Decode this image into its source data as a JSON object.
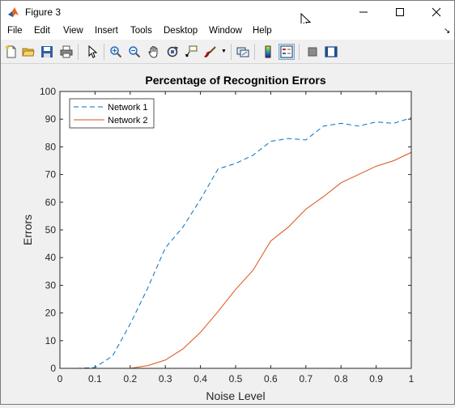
{
  "window": {
    "title": "Figure 3",
    "icon": "matlab-logo-icon",
    "controls": [
      "minimize-icon",
      "maximize-icon",
      "close-icon"
    ]
  },
  "menu": {
    "items": [
      "File",
      "Edit",
      "View",
      "Insert",
      "Tools",
      "Desktop",
      "Window",
      "Help"
    ],
    "overflow_icon": "dock-arrow-icon"
  },
  "toolbar": {
    "buttons": [
      "new-figure-icon",
      "open-file-icon",
      "save-icon",
      "print-icon",
      "edit-plot-pointer-icon",
      "zoom-in-icon",
      "zoom-out-icon",
      "pan-hand-icon",
      "rotate-3d-icon",
      "data-cursor-icon",
      "brush-icon",
      "link-plot-icon",
      "colorbar-icon",
      "legend-icon",
      "hide-plot-tools-icon",
      "show-plot-tools-icon"
    ],
    "selected": "legend-icon"
  },
  "colors": {
    "network1": "#0072BD",
    "network2": "#D95319",
    "window_bg": "#f0f0f0",
    "axes_bg": "#ffffff"
  },
  "chart_data": {
    "type": "line",
    "title": "Percentage of Recognition Errors",
    "xlabel": "Noise Level",
    "ylabel": "Errors",
    "xlim": [
      0,
      1
    ],
    "ylim": [
      0,
      100
    ],
    "xticks": [
      "0",
      "0.1",
      "0.2",
      "0.3",
      "0.4",
      "0.5",
      "0.6",
      "0.7",
      "0.8",
      "0.9",
      "1"
    ],
    "yticks": [
      "0",
      "10",
      "20",
      "30",
      "40",
      "50",
      "60",
      "70",
      "80",
      "90",
      "100"
    ],
    "grid": false,
    "legend_position": "top-left",
    "x": [
      0,
      0.05,
      0.1,
      0.15,
      0.2,
      0.25,
      0.3,
      0.35,
      0.4,
      0.45,
      0.5,
      0.55,
      0.6,
      0.65,
      0.7,
      0.75,
      0.8,
      0.85,
      0.9,
      0.95,
      1.0
    ],
    "series": [
      {
        "name": "Network 1",
        "style": "dashed",
        "values": [
          0,
          0,
          0.3,
          4.5,
          16,
          29,
          43.5,
          51,
          61,
          72,
          74,
          77,
          82,
          83,
          82.5,
          87.5,
          88.5,
          87.5,
          89,
          88.5,
          90.5
        ]
      },
      {
        "name": "Network 2",
        "style": "solid",
        "values": [
          0,
          0,
          0,
          0,
          0,
          1,
          3,
          7,
          13,
          20.5,
          28.5,
          35.5,
          46,
          51,
          57.5,
          62,
          67,
          70,
          73,
          75,
          78
        ]
      }
    ]
  }
}
